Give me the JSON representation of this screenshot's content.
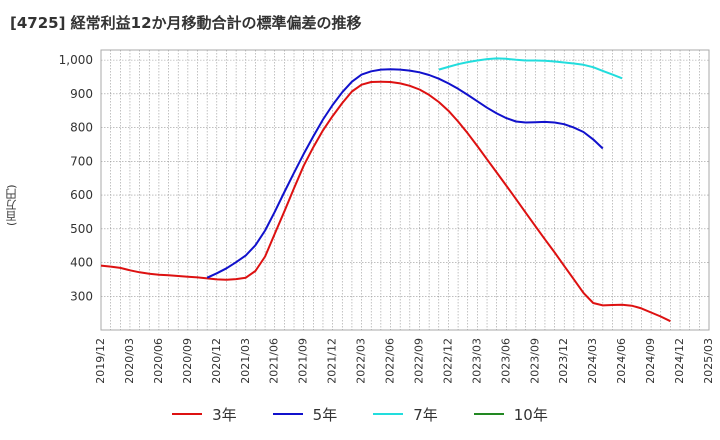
{
  "title": "[4725]  経常利益12か月移動合計の標準偏差の推移",
  "y_unit": "(百万円)",
  "chart_data": {
    "type": "line",
    "title": "[4725]  経常利益12か月移動合計の標準偏差の推移",
    "ylabel": "(百万円)",
    "xlabel": "",
    "ylim": [
      200,
      1030
    ],
    "yticks": [
      300,
      400,
      500,
      600,
      700,
      800,
      900,
      1000
    ],
    "ytick_labels": [
      "300",
      "400",
      "500",
      "600",
      "700",
      "800",
      "900",
      "1,000"
    ],
    "xtick_labels": [
      "2019/12",
      "2020/03",
      "2020/06",
      "2020/09",
      "2020/12",
      "2021/03",
      "2021/06",
      "2021/09",
      "2021/12",
      "2022/03",
      "2022/06",
      "2022/09",
      "2022/12",
      "2023/03",
      "2023/06",
      "2023/09",
      "2023/12",
      "2024/03",
      "2024/06",
      "2024/09",
      "2024/12",
      "2025/03"
    ],
    "grid": true,
    "legend": "bottom",
    "months": [
      "2019/12",
      "2020/01",
      "2020/02",
      "2020/03",
      "2020/04",
      "2020/05",
      "2020/06",
      "2020/07",
      "2020/08",
      "2020/09",
      "2020/10",
      "2020/11",
      "2020/12",
      "2021/01",
      "2021/02",
      "2021/03",
      "2021/04",
      "2021/05",
      "2021/06",
      "2021/07",
      "2021/08",
      "2021/09",
      "2021/10",
      "2021/11",
      "2021/12",
      "2022/01",
      "2022/02",
      "2022/03",
      "2022/04",
      "2022/05",
      "2022/06",
      "2022/07",
      "2022/08",
      "2022/09",
      "2022/10",
      "2022/11",
      "2022/12",
      "2023/01",
      "2023/02",
      "2023/03",
      "2023/04",
      "2023/05",
      "2023/06",
      "2023/07",
      "2023/08",
      "2023/09",
      "2023/10",
      "2023/11",
      "2023/12",
      "2024/01",
      "2024/02",
      "2024/03",
      "2024/04",
      "2024/05",
      "2024/06",
      "2024/07",
      "2024/08",
      "2024/09",
      "2024/10",
      "2024/11",
      "2024/12",
      "2025/01",
      "2025/02",
      "2025/03"
    ],
    "series": [
      {
        "name": "3年",
        "color": "#dd1111",
        "start": "2019/12",
        "values": [
          391,
          388,
          384,
          377,
          371,
          367,
          364,
          362,
          360,
          358,
          356,
          353,
          350,
          349,
          351,
          355,
          375,
          418,
          485,
          552,
          620,
          687,
          742,
          792,
          834,
          873,
          907,
          927,
          935,
          936,
          935,
          931,
          924,
          913,
          897,
          876,
          850,
          818,
          783,
          745,
          706,
          667,
          628,
          588,
          548,
          508,
          469,
          430,
          390,
          350,
          310,
          280,
          273,
          274,
          275,
          272,
          264,
          252,
          240,
          226
        ]
      },
      {
        "name": "5年",
        "color": "#1111cc",
        "start": "2020/11",
        "values": [
          355,
          368,
          383,
          401,
          421,
          451,
          495,
          550,
          609,
          666,
          722,
          774,
          824,
          867,
          905,
          936,
          957,
          967,
          972,
          973,
          972,
          969,
          964,
          956,
          945,
          931,
          915,
          897,
          878,
          859,
          842,
          828,
          818,
          815,
          816,
          817,
          815,
          810,
          800,
          787,
          765,
          738
        ]
      },
      {
        "name": "7年",
        "color": "#22dddd",
        "start": "2022/11",
        "values": [
          972,
          980,
          988,
          994,
          999,
          1003,
          1005,
          1004,
          1001,
          999,
          999,
          998,
          996,
          993,
          990,
          986,
          979,
          968,
          957,
          946
        ]
      },
      {
        "name": "10年",
        "color": "#228822",
        "start": "2025/03",
        "values": []
      }
    ]
  }
}
